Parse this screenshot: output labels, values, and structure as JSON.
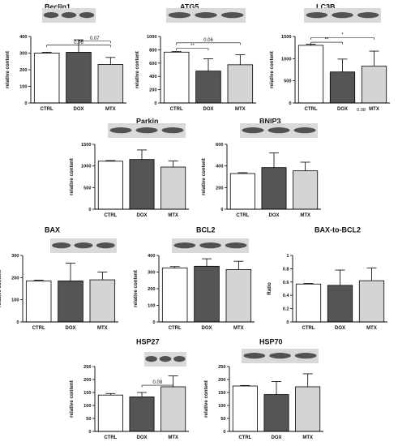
{
  "colors": {
    "CTRL": "#ffffff",
    "DOX": "#555555",
    "MTX": "#d4d4d4",
    "axis": "#000000",
    "blot_bg": "#d9d9d9",
    "band": "#3a3a3a"
  },
  "chart_data": [
    {
      "type": "bar",
      "title": "Beclin1",
      "ylabel": "relative content",
      "categories": [
        "CTRL",
        "DOX",
        "MTX"
      ],
      "values": [
        300,
        305,
        232
      ],
      "errors": [
        5,
        75,
        42
      ],
      "ylim": [
        0,
        400
      ],
      "yticks": [
        0,
        100,
        200,
        300,
        400
      ],
      "annotations": [
        {
          "from": 0,
          "to": 2,
          "y": 348,
          "label": "0.06"
        },
        {
          "from": 1,
          "to": 2,
          "y": 372,
          "label": "0.07"
        }
      ]
    },
    {
      "type": "bar",
      "title": "ATG5",
      "ylabel": "relative content",
      "categories": [
        "CTRL",
        "DOX",
        "MTX"
      ],
      "values": [
        765,
        480,
        575
      ],
      "errors": [
        8,
        185,
        150
      ],
      "ylim": [
        0,
        1000
      ],
      "yticks": [
        0,
        200,
        400,
        600,
        800,
        1000
      ],
      "annotations": [
        {
          "from": 0,
          "to": 1,
          "y": 820,
          "label": "**"
        },
        {
          "from": 0,
          "to": 2,
          "y": 905,
          "label": "0.06"
        }
      ]
    },
    {
      "type": "bar",
      "title": "LC3B",
      "ylabel": "relative content",
      "categories": [
        "CTRL",
        "DOX",
        "MTX"
      ],
      "values": [
        1300,
        700,
        830
      ],
      "errors": [
        25,
        290,
        340
      ],
      "ylim": [
        0,
        1500
      ],
      "yticks": [
        0,
        500,
        1000,
        1500
      ],
      "annotations": [
        {
          "from": 0,
          "to": 1,
          "y": 1370,
          "label": "**"
        },
        {
          "from": 0,
          "to": 2,
          "y": 1475,
          "label": "*"
        }
      ],
      "notes": [
        {
          "category": 2,
          "label": "0.08"
        }
      ]
    },
    {
      "type": "bar",
      "title": "Parkin",
      "ylabel": "relative content",
      "categories": [
        "CTRL",
        "DOX",
        "MTX"
      ],
      "values": [
        1110,
        1150,
        975
      ],
      "errors": [
        15,
        220,
        140
      ],
      "ylim": [
        0,
        1500
      ],
      "yticks": [
        0,
        500,
        1000,
        1500
      ],
      "annotations": []
    },
    {
      "type": "bar",
      "title": "BNIP3",
      "ylabel": "relative content",
      "categories": [
        "CTRL",
        "DOX",
        "MTX"
      ],
      "values": [
        330,
        385,
        355
      ],
      "errors": [
        8,
        135,
        80
      ],
      "ylim": [
        0,
        600
      ],
      "yticks": [
        0,
        200,
        400,
        600
      ],
      "annotations": []
    },
    {
      "type": "bar",
      "title": "BAX",
      "ylabel": "relative content",
      "categories": [
        "CTRL",
        "DOX",
        "MTX"
      ],
      "values": [
        185,
        185,
        190
      ],
      "errors": [
        3,
        80,
        35
      ],
      "ylim": [
        0,
        300
      ],
      "yticks": [
        0,
        100,
        200,
        300
      ],
      "annotations": []
    },
    {
      "type": "bar",
      "title": "BCL2",
      "ylabel": "relative content",
      "categories": [
        "CTRL",
        "DOX",
        "MTX"
      ],
      "values": [
        325,
        335,
        315
      ],
      "errors": [
        8,
        45,
        50
      ],
      "ylim": [
        0,
        400
      ],
      "yticks": [
        0,
        100,
        200,
        300,
        400
      ],
      "annotations": []
    },
    {
      "type": "bar",
      "title": "BAX-to-BCL2",
      "ylabel": "Ratio",
      "categories": [
        "CTRL",
        "DOX",
        "MTX"
      ],
      "values": [
        0.57,
        0.55,
        0.62
      ],
      "errors": [
        0.01,
        0.23,
        0.19
      ],
      "ylim": [
        0,
        1.0
      ],
      "yticks": [
        0,
        0.2,
        0.4,
        0.6,
        0.8,
        1.0
      ],
      "annotations": []
    },
    {
      "type": "bar",
      "title": "HSP27",
      "ylabel": "relative content",
      "categories": [
        "CTRL",
        "DOX",
        "MTX"
      ],
      "values": [
        140,
        133,
        172
      ],
      "errors": [
        6,
        17,
        42
      ],
      "ylim": [
        0,
        250
      ],
      "yticks": [
        0,
        50,
        100,
        150,
        200,
        250
      ],
      "annotations": [
        {
          "from": 1,
          "to": 2,
          "y": 178,
          "label": "0.08"
        }
      ]
    },
    {
      "type": "bar",
      "title": "HSP70",
      "ylabel": "relative content",
      "categories": [
        "CTRL",
        "DOX",
        "MTX"
      ],
      "values": [
        175,
        142,
        172
      ],
      "errors": [
        2,
        50,
        50
      ],
      "ylim": [
        0,
        250
      ],
      "yticks": [
        0,
        50,
        100,
        150,
        200,
        250
      ],
      "annotations": []
    }
  ]
}
